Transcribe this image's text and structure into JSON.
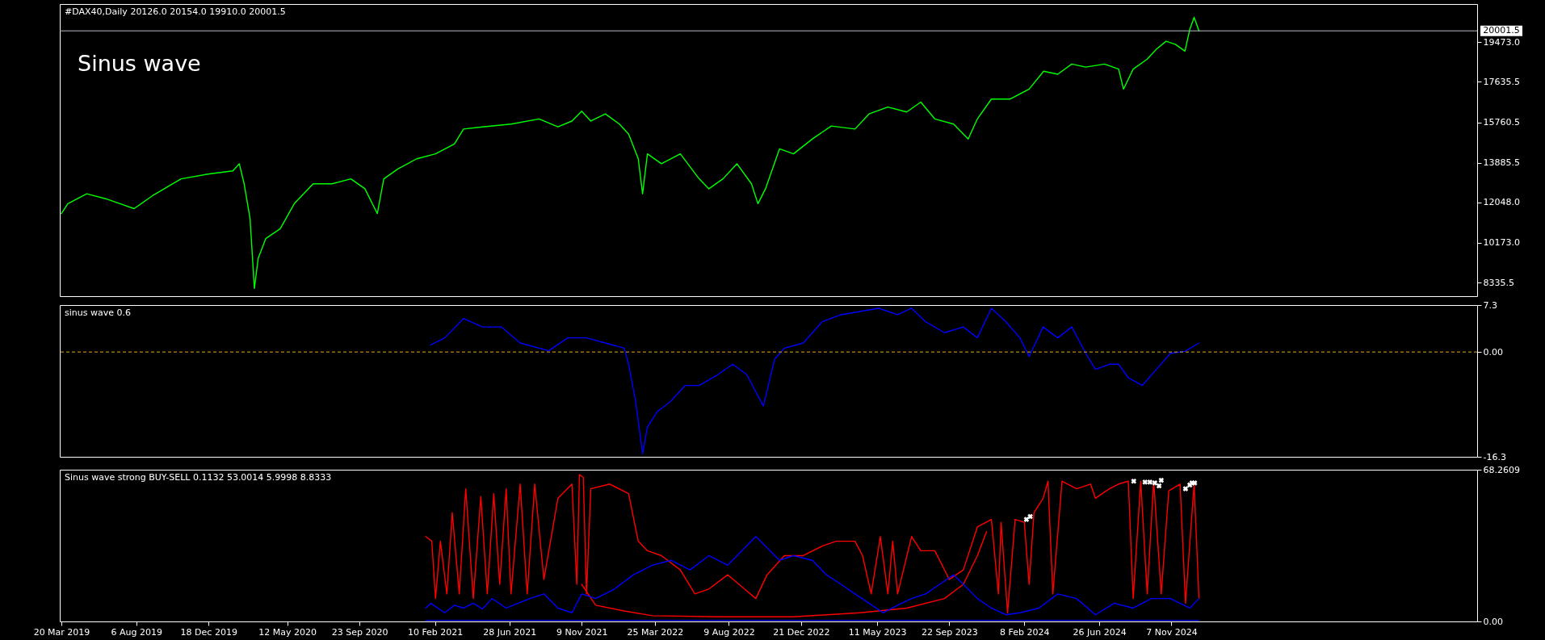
{
  "chart_data": [
    {
      "type": "line",
      "title": "#DAX40,Daily  20126.0 20154.0 19910.0 20001.5",
      "annotations": [
        "Sinus wave"
      ],
      "x": [
        "2019-03-20",
        "2019-04-01",
        "2019-05-06",
        "2019-06-10",
        "2019-08-02",
        "2019-09-05",
        "2019-10-28",
        "2019-12-19",
        "2020-02-01",
        "2020-02-13",
        "2020-02-22",
        "2020-03-04",
        "2020-03-12",
        "2020-03-19",
        "2020-04-02",
        "2020-04-29",
        "2020-05-25",
        "2020-06-29",
        "2020-08-03",
        "2020-09-07",
        "2020-10-03",
        "2020-10-26",
        "2020-11-07",
        "2020-12-03",
        "2021-01-07",
        "2021-02-11",
        "2021-03-18",
        "2021-04-04",
        "2021-05-09",
        "2021-07-01",
        "2021-08-22",
        "2021-09-26",
        "2021-10-22",
        "2021-11-09",
        "2021-11-26",
        "2021-12-23",
        "2022-01-18",
        "2022-02-04",
        "2022-02-22",
        "2022-03-02",
        "2022-03-11",
        "2022-04-06",
        "2022-05-11",
        "2022-06-15",
        "2022-07-03",
        "2022-07-29",
        "2022-08-24",
        "2022-09-20",
        "2022-10-02",
        "2022-10-16",
        "2022-11-11",
        "2022-12-07",
        "2023-01-11",
        "2023-02-15",
        "2023-03-31",
        "2023-04-26",
        "2023-05-31",
        "2023-07-05",
        "2023-07-31",
        "2023-08-26",
        "2023-09-30",
        "2023-10-27",
        "2023-11-13",
        "2023-12-09",
        "2024-01-13",
        "2024-02-17",
        "2024-03-15",
        "2024-04-10",
        "2024-05-06",
        "2024-06-01",
        "2024-07-06",
        "2024-08-01",
        "2024-08-10",
        "2024-08-28",
        "2024-09-23",
        "2024-10-10",
        "2024-10-28",
        "2024-11-14",
        "2024-12-02",
        "2024-12-11",
        "2024-12-19",
        "2024-12-28"
      ],
      "series": [
        {
          "color": "#00ff00",
          "values": [
            11530,
            11990,
            12450,
            12220,
            11760,
            12360,
            13140,
            13370,
            13510,
            13840,
            12910,
            11290,
            8060,
            9450,
            10370,
            10830,
            11990,
            12910,
            12910,
            13140,
            12680,
            11530,
            13140,
            13600,
            14070,
            14300,
            14760,
            15450,
            15550,
            15680,
            15920,
            15550,
            15820,
            16280,
            15820,
            16150,
            15680,
            15220,
            14070,
            12450,
            14300,
            13840,
            14300,
            13140,
            12680,
            13140,
            13840,
            12910,
            11990,
            12680,
            14530,
            14300,
            14990,
            15590,
            15450,
            16150,
            16470,
            16240,
            16700,
            15920,
            15680,
            14990,
            15920,
            16840,
            16840,
            17300,
            18130,
            17990,
            18460,
            18320,
            18460,
            18230,
            17300,
            18230,
            18690,
            19150,
            19520,
            19380,
            19060,
            20070,
            20630,
            20001.5
          ]
        }
      ],
      "xlim": [
        "2019-03-17",
        "2026-05-28"
      ],
      "ylim": [
        7700,
        21245
      ],
      "yticks": [
        8335.5,
        {
          "value": 10173,
          "label": "10173.0"
        },
        {
          "value": 12048,
          "label": "12048.0"
        },
        13885.5,
        15760.5,
        17635.5,
        {
          "value": 19473,
          "label": "19473.0"
        }
      ],
      "ref_lines": [
        {
          "axis": "y",
          "value": 20001.5,
          "label": "20001.5",
          "color": "#b4bcc8"
        }
      ],
      "tick_labels": "y"
    },
    {
      "type": "line",
      "title": "sinus wave 0.6",
      "x": [
        "2021-02-02",
        "2021-02-28",
        "2021-04-04",
        "2021-05-09",
        "2021-06-13",
        "2021-07-18",
        "2021-09-09",
        "2021-10-14",
        "2021-11-18",
        "2021-12-23",
        "2022-01-27",
        "2022-02-04",
        "2022-02-17",
        "2022-03-02",
        "2022-03-11",
        "2022-03-29",
        "2022-04-24",
        "2022-05-20",
        "2022-06-15",
        "2022-07-20",
        "2022-08-16",
        "2022-09-11",
        "2022-10-12",
        "2022-11-02",
        "2022-11-20",
        "2022-12-25",
        "2023-01-29",
        "2023-03-05",
        "2023-04-09",
        "2023-05-14",
        "2023-06-18",
        "2023-07-14",
        "2023-08-09",
        "2023-09-13",
        "2023-10-18",
        "2023-11-13",
        "2023-12-09",
        "2024-01-05",
        "2024-01-31",
        "2024-02-17",
        "2024-03-14",
        "2024-04-10",
        "2024-05-06",
        "2024-06-01",
        "2024-06-19",
        "2024-07-15",
        "2024-08-01",
        "2024-08-19",
        "2024-09-14",
        "2024-10-10",
        "2024-11-05",
        "2024-12-02",
        "2024-12-28"
      ],
      "series": [
        {
          "color": "#0000ff",
          "values": [
            1.1,
            2.2,
            5.2,
            3.9,
            3.9,
            1.4,
            0.2,
            2.2,
            2.2,
            1.4,
            0.6,
            -1.9,
            -7.6,
            -15.8,
            -11.7,
            -9.3,
            -7.6,
            -5.2,
            -5.2,
            -3.5,
            -1.9,
            -3.5,
            -8.4,
            -1.1,
            0.6,
            1.4,
            4.7,
            5.8,
            6.3,
            6.8,
            5.8,
            6.8,
            4.7,
            3.0,
            3.9,
            2.2,
            6.8,
            4.7,
            2.2,
            -0.7,
            3.9,
            2.2,
            3.9,
            -0.2,
            -2.7,
            -1.9,
            -1.9,
            -4.0,
            -5.2,
            -2.7,
            -0.2,
            0.1,
            1.4
          ]
        }
      ],
      "xlim": [
        "2019-03-17",
        "2026-05-28"
      ],
      "ylim": [
        -16.3,
        7.3
      ],
      "yticks": [
        7.3,
        {
          "value": 0,
          "label": "0.00"
        },
        -16.3
      ],
      "ref_lines": [
        {
          "axis": "y",
          "value": 0,
          "color": "#e6a817",
          "line_style": "dashed"
        }
      ],
      "tick_labels": "y"
    },
    {
      "type": "line",
      "title": "Sinus wave strong BUY-SELL 0.1132 53.0014 5.9998 8.8333",
      "series": [
        {
          "color": "#ff0000",
          "x": [
            "2021-01-24",
            "2021-02-04",
            "2021-02-11",
            "2021-02-20",
            "2021-03-04",
            "2021-03-14",
            "2021-03-27",
            "2021-04-08",
            "2021-04-22",
            "2021-05-06",
            "2021-05-18",
            "2021-05-30",
            "2021-06-10",
            "2021-06-22",
            "2021-07-01",
            "2021-07-18",
            "2021-07-31",
            "2021-08-14",
            "2021-08-31",
            "2021-09-26",
            "2021-10-22",
            "2021-10-31",
            "2021-11-05",
            "2021-11-12",
            "2021-11-18",
            "2021-11-26",
            "2021-12-31",
            "2022-02-04",
            "2022-02-22",
            "2022-03-11",
            "2022-04-06",
            "2022-05-11",
            "2022-06-07",
            "2022-07-03",
            "2022-08-07",
            "2022-09-07",
            "2022-09-28",
            "2022-10-19",
            "2022-11-20",
            "2022-12-25",
            "2023-01-29",
            "2023-02-24",
            "2023-03-31",
            "2023-04-14",
            "2023-04-30",
            "2023-05-17",
            "2023-05-31",
            "2023-06-09",
            "2023-06-18",
            "2023-07-14",
            "2023-07-31",
            "2023-08-26",
            "2023-09-22",
            "2023-10-18",
            "2023-11-13",
            "2023-12-09",
            "2023-12-22",
            "2023-12-27",
            "2024-01-08",
            "2024-01-22",
            "2024-02-08",
            "2024-02-17",
            "2024-02-26",
            "2024-03-14",
            "2024-03-23",
            "2024-04-01",
            "2024-04-18",
            "2024-05-15",
            "2024-06-10",
            "2024-06-19",
            "2024-07-15",
            "2024-08-01",
            "2024-08-19",
            "2024-08-28",
            "2024-09-11",
            "2024-09-23",
            "2024-10-05",
            "2024-10-19",
            "2024-11-02",
            "2024-11-23",
            "2024-12-03",
            "2024-12-19",
            "2024-12-28"
          ],
          "values": [
            38.2,
            36.1,
            10.3,
            36.1,
            12.4,
            48.9,
            12.4,
            59.7,
            10.3,
            56.2,
            12.4,
            57.5,
            16.7,
            59.7,
            12.4,
            61.8,
            12.4,
            61.8,
            18.9,
            55.4,
            61.8,
            16.7,
            66.1,
            64.8,
            12.4,
            59.7,
            61.8,
            57.5,
            36.1,
            31.8,
            29.6,
            23.2,
            12.4,
            14.6,
            21.0,
            14.6,
            10.3,
            21.0,
            29.6,
            29.6,
            33.9,
            36.1,
            36.1,
            29.6,
            12.4,
            38.2,
            12.4,
            36.1,
            12.4,
            38.2,
            31.8,
            31.8,
            18.9,
            23.2,
            42.5,
            45.9,
            12.4,
            44.6,
            3.9,
            45.9,
            44.6,
            16.7,
            48.9,
            55.4,
            63.1,
            12.4,
            63.1,
            59.7,
            61.8,
            55.4,
            59.7,
            61.8,
            63.1,
            10.3,
            63.1,
            12.4,
            63.1,
            12.4,
            58.8,
            61.8,
            8.2,
            61.8,
            10.3
          ]
        },
        {
          "color": "#ff0000",
          "x": [
            "2021-11-09",
            "2021-12-05",
            "2022-01-27",
            "2022-03-20",
            "2022-07-20",
            "2022-12-07",
            "2023-04-09",
            "2023-07-05",
            "2023-09-13",
            "2023-10-18",
            "2023-11-13",
            "2023-11-30"
          ],
          "values": [
            16.7,
            7.3,
            4.7,
            2.6,
            2.1,
            2.1,
            3.9,
            6.0,
            10.3,
            16.7,
            29.6,
            40.4
          ]
        },
        {
          "color": "#0000ff",
          "x": [
            "2021-01-24",
            "2021-02-02",
            "2021-02-28",
            "2021-03-18",
            "2021-04-04",
            "2021-04-22",
            "2021-05-09",
            "2021-05-27",
            "2021-06-22",
            "2021-08-05",
            "2021-08-31",
            "2021-09-26",
            "2021-10-22",
            "2021-11-09",
            "2021-12-05",
            "2022-01-09",
            "2022-02-13",
            "2022-03-20",
            "2022-04-24",
            "2022-05-29",
            "2022-07-03",
            "2022-08-07",
            "2022-09-02",
            "2022-09-28",
            "2022-10-16",
            "2022-11-11",
            "2022-12-07",
            "2023-01-11",
            "2023-02-06",
            "2023-03-05",
            "2023-03-31",
            "2023-04-26",
            "2023-05-22",
            "2023-06-18",
            "2023-07-14",
            "2023-08-09",
            "2023-09-04",
            "2023-09-30",
            "2023-10-18",
            "2023-11-13",
            "2023-12-09",
            "2024-01-05",
            "2024-01-31",
            "2024-03-06",
            "2024-04-10",
            "2024-05-15",
            "2024-06-19",
            "2024-07-24",
            "2024-08-28",
            "2024-10-01",
            "2024-11-05",
            "2024-12-11",
            "2024-12-28"
          ],
          "values": [
            6.0,
            8.2,
            3.9,
            7.3,
            6.0,
            8.2,
            5.6,
            10.3,
            6.0,
            10.3,
            12.4,
            6.0,
            3.9,
            12.4,
            10.3,
            14.6,
            21.0,
            25.3,
            27.5,
            23.2,
            29.6,
            25.3,
            31.8,
            38.2,
            33.9,
            27.5,
            29.6,
            27.5,
            21.0,
            16.7,
            12.4,
            8.2,
            3.9,
            7.3,
            10.3,
            12.4,
            16.7,
            21.0,
            16.7,
            10.3,
            6.0,
            3.0,
            3.9,
            6.0,
            12.4,
            10.3,
            3.0,
            8.2,
            6.0,
            10.3,
            10.3,
            6.0,
            10.3
          ]
        },
        {
          "color": "#0000ff",
          "x": [
            "2021-01-24",
            "2024-12-28"
          ],
          "values": [
            0.5,
            0.5
          ]
        },
        {
          "type": "scatter",
          "color": "#ffffff",
          "marker": "cross",
          "x": [
            "2024-02-12",
            "2024-02-19",
            "2024-08-29",
            "2024-09-19",
            "2024-09-28",
            "2024-10-07",
            "2024-10-15",
            "2024-10-19",
            "2024-12-03",
            "2024-12-11",
            "2024-12-15",
            "2024-12-20"
          ],
          "values": [
            45.9,
            47.2,
            63.1,
            62.7,
            62.7,
            62.3,
            61.0,
            63.5,
            59.7,
            61.4,
            62.3,
            62.3
          ]
        }
      ],
      "xlim": [
        "2019-03-17",
        "2026-05-28"
      ],
      "ylim": [
        0,
        68.2609
      ],
      "xticks": [
        {
          "value": "2019-03-20",
          "label": "20 Mar 2019"
        },
        {
          "value": "2019-08-06",
          "label": "6 Aug 2019"
        },
        {
          "value": "2019-12-18",
          "label": "18 Dec 2019"
        },
        {
          "value": "2020-05-12",
          "label": "12 May 2020"
        },
        {
          "value": "2020-09-23",
          "label": "23 Sep 2020"
        },
        {
          "value": "2021-02-10",
          "label": "10 Feb 2021"
        },
        {
          "value": "2021-06-28",
          "label": "28 Jun 2021"
        },
        {
          "value": "2021-11-09",
          "label": "9 Nov 2021"
        },
        {
          "value": "2022-03-25",
          "label": "25 Mar 2022"
        },
        {
          "value": "2022-08-09",
          "label": "9 Aug 2022"
        },
        {
          "value": "2022-12-21",
          "label": "21 Dec 2022"
        },
        {
          "value": "2023-05-11",
          "label": "11 May 2023"
        },
        {
          "value": "2023-09-22",
          "label": "22 Sep 2023"
        },
        {
          "value": "2024-02-08",
          "label": "8 Feb 2024"
        },
        {
          "value": "2024-06-26",
          "label": "26 Jun 2024"
        },
        {
          "value": "2024-11-07",
          "label": "7 Nov 2024"
        }
      ],
      "yticks": [
        68.2609,
        {
          "value": 0,
          "label": "0.00"
        }
      ]
    }
  ]
}
